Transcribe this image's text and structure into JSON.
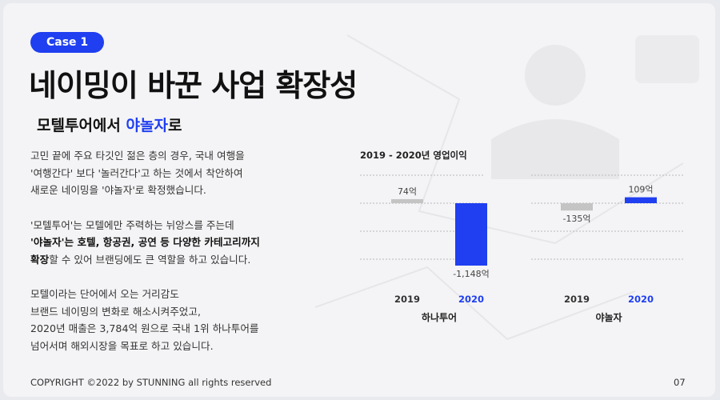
{
  "slide": {
    "badge": "Case 1",
    "title": "네이밍이 바꾼 사업 확장성",
    "subtitle_prefix": "모텔투어에서 ",
    "subtitle_accent": "야놀자",
    "subtitle_suffix": "로",
    "accent_color": "#1f3ff0"
  },
  "body": {
    "p1_l1": "고민 끝에 주요 타깃인 젊은 층의 경우, 국내 여행을",
    "p1_l2": "'여행간다' 보다 '놀러간다'고 하는 것에서 착안하여",
    "p1_l3": "새로운 네이밍을 '야놀자'로 확정했습니다.",
    "p2_l1": "'모텔투어'는 모텔에만 주력하는 뉘앙스를 주는데",
    "p2_l2_bold": "'야놀자'는 호텔, 항공권, 공연 등 다양한 카테고리까지",
    "p2_l3_bold": "확장",
    "p2_l3_rest": "할 수 있어 브랜딩에도 큰 역할을 하고 있습니다.",
    "p3_l1": "모텔이라는 단어에서 오는 거리감도",
    "p3_l2": "브랜드 네이밍의 변화로 해소시켜주었고,",
    "p3_l3": "2020년 매출은 3,784억 원으로 국내 1위 하나투어를",
    "p3_l4": "넘어서며 해외시장을 목표로 하고 있습니다."
  },
  "chart_data": {
    "type": "bar",
    "title": "2019 - 2020년 영업이익",
    "groups": [
      {
        "name": "하나투어",
        "categories": [
          "2019",
          "2020"
        ],
        "values": [
          74,
          -1148
        ],
        "labels": [
          "74억",
          "-1,148억"
        ],
        "colors": [
          "#c4c4c4",
          "#1f3ff0"
        ]
      },
      {
        "name": "야놀자",
        "categories": [
          "2019",
          "2020"
        ],
        "values": [
          -135,
          109
        ],
        "labels": [
          "-135억",
          "109억"
        ],
        "colors": [
          "#c4c4c4",
          "#1f3ff0"
        ]
      }
    ],
    "grid": true
  },
  "footer": {
    "copyright": "COPYRIGHT ©2022 by STUNNING all rights reserved",
    "page": "07"
  }
}
